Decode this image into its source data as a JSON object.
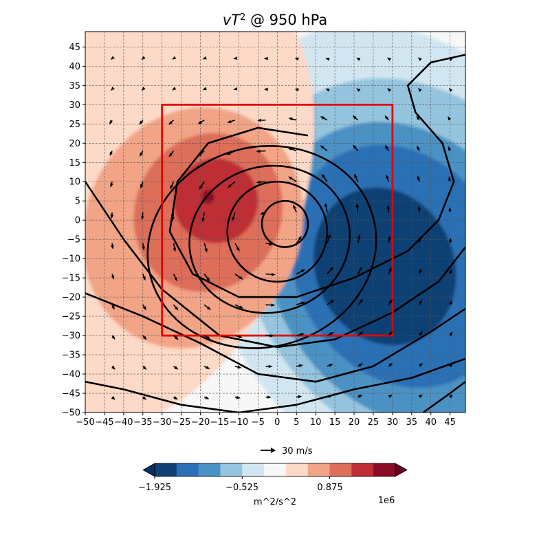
{
  "chart_data": {
    "type": "contour",
    "title": "vT² @ 950 hPa",
    "title_base": "vT",
    "title_sup": "2",
    "title_rest": " @ 950 hPa",
    "x": {
      "range": [
        -50,
        49
      ],
      "ticks": [
        -50,
        -45,
        -40,
        -35,
        -30,
        -25,
        -20,
        -15,
        -10,
        -5,
        0,
        5,
        10,
        15,
        20,
        25,
        30,
        35,
        40,
        45
      ]
    },
    "y": {
      "range": [
        -50,
        49
      ],
      "ticks": [
        -50,
        -45,
        -40,
        -35,
        -30,
        -25,
        -20,
        -15,
        -10,
        -5,
        0,
        5,
        10,
        15,
        20,
        25,
        30,
        35,
        40,
        45
      ]
    },
    "grid": true,
    "filled_contours": {
      "levels_1e6": [
        -2.275,
        -1.925,
        -1.575,
        -1.225,
        -0.875,
        -0.525,
        -0.175,
        0.175,
        0.525,
        0.875,
        1.225,
        1.575,
        1.925,
        2.275
      ],
      "colors": [
        "#0f3f73",
        "#2b6fb5",
        "#4b92c4",
        "#95c4de",
        "#d2e6f1",
        "#f7f7f7",
        "#fdd9c7",
        "#f2a486",
        "#dc6e5a",
        "#bf2d35",
        "#8a0c26"
      ],
      "over_color": "#67001f",
      "under_color": "#053061",
      "negative_center": {
        "x": 28,
        "y": -6
      },
      "positive_center": {
        "x": -18,
        "y": 4
      }
    },
    "line_contours_center": {
      "x": -2,
      "y": -1
    },
    "red_box": {
      "x": [
        -30,
        30
      ],
      "y": [
        -30,
        30
      ],
      "color": "#e50000"
    },
    "quiver_key": {
      "label": "30 m/s",
      "speed": 30
    },
    "colorbar": {
      "tick_labels": [
        "−1.925",
        "−0.525",
        "0.875"
      ],
      "label": "m^2/s^2",
      "offset": "1e6"
    }
  }
}
